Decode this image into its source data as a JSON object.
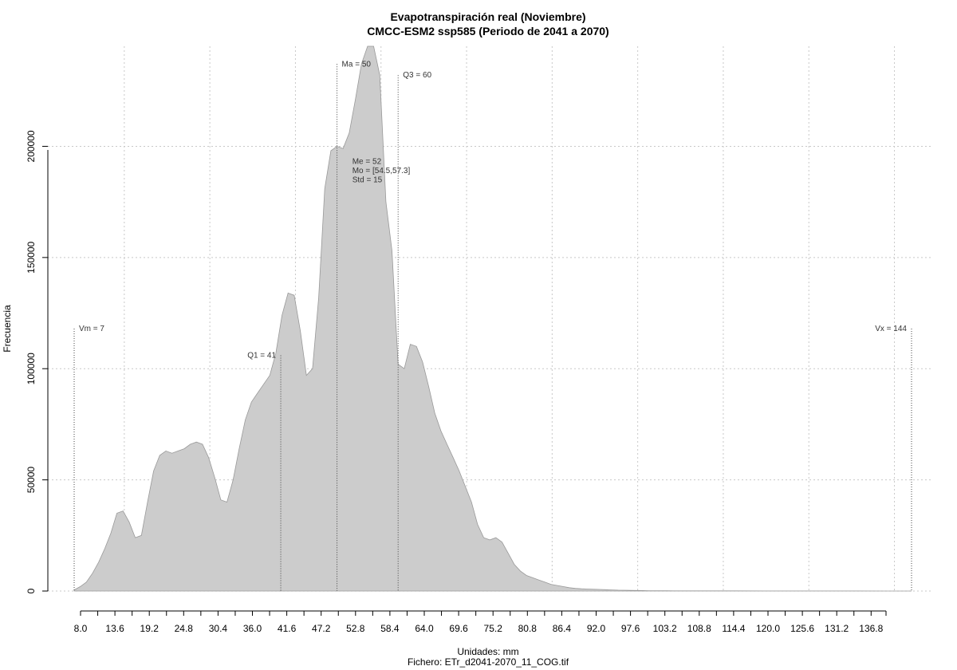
{
  "chart_data": {
    "type": "area",
    "title": "Evapotranspiración real (Noviembre)",
    "subtitle": "CMCC-ESM2 ssp585 (Periodo de 2041 a 2070)",
    "xlabel": "Unidades: mm",
    "file_label": "Fichero: ETr_d2041-2070_11_COG.tif",
    "ylabel": "Frecuencia",
    "xlim": [
      7,
      144
    ],
    "ylim": [
      0,
      245000
    ],
    "grid": true,
    "fill_color": "#cccccc",
    "line_color": "#999999",
    "x_ticks": [
      "8.0",
      "13.6",
      "19.2",
      "24.8",
      "30.4",
      "36.0",
      "41.6",
      "47.2",
      "52.8",
      "58.4",
      "64.0",
      "69.6",
      "75.2",
      "80.8",
      "86.4",
      "92.0",
      "97.6",
      "103.2",
      "108.8",
      "114.4",
      "120.0",
      "125.6",
      "131.2",
      "136.8"
    ],
    "y_ticks": [
      0,
      50000,
      100000,
      150000,
      200000
    ],
    "x": [
      7,
      8,
      9,
      10,
      11,
      12,
      13,
      14,
      15,
      16,
      17,
      18,
      19,
      20,
      21,
      22,
      23,
      24,
      25,
      26,
      27,
      28,
      29,
      30,
      31,
      32,
      33,
      34,
      35,
      36,
      37,
      38,
      39,
      40,
      41,
      42,
      43,
      44,
      45,
      46,
      47,
      48,
      49,
      50,
      51,
      52,
      53,
      54,
      55,
      56,
      57,
      58,
      59,
      60,
      61,
      62,
      63,
      64,
      65,
      66,
      67,
      68,
      69,
      70,
      71,
      72,
      73,
      74,
      75,
      76,
      77,
      78,
      79,
      80,
      81,
      82,
      83,
      84,
      85,
      86,
      87,
      88,
      89,
      90,
      91,
      92,
      93,
      94,
      95,
      96,
      97,
      98,
      99,
      100,
      101,
      102,
      103,
      104,
      105,
      110,
      115,
      120,
      125,
      130,
      135,
      140,
      144
    ],
    "values": [
      500,
      2000,
      4000,
      8000,
      13000,
      19000,
      26000,
      35000,
      36000,
      31000,
      24000,
      25000,
      40000,
      54000,
      61000,
      63000,
      62000,
      63000,
      64000,
      66000,
      67000,
      66000,
      60000,
      51000,
      41000,
      40000,
      50000,
      64000,
      77000,
      85000,
      89000,
      93000,
      97000,
      107000,
      124000,
      134000,
      133000,
      117000,
      97000,
      100000,
      132000,
      181000,
      198000,
      200000,
      199000,
      206000,
      221000,
      237000,
      248000,
      248000,
      232000,
      175000,
      153000,
      102000,
      100000,
      111000,
      110000,
      103000,
      92000,
      80000,
      72000,
      66000,
      60000,
      54000,
      47000,
      40000,
      30000,
      24000,
      23000,
      24000,
      22000,
      17000,
      12000,
      9000,
      7000,
      6000,
      5000,
      4000,
      3000,
      2500,
      2000,
      1500,
      1200,
      1000,
      900,
      800,
      700,
      600,
      500,
      400,
      350,
      300,
      250,
      200,
      150,
      120,
      100,
      90,
      80,
      70,
      60,
      50,
      40,
      30,
      20,
      10,
      0
    ],
    "annotations": [
      {
        "label": "Vm = 7",
        "x": 7,
        "y": 118000
      },
      {
        "label": "Q1 = 41",
        "x": 40.8,
        "y": 106000
      },
      {
        "label": "Ma = 50",
        "x": 50,
        "y": 237000
      },
      {
        "label": "Q3 = 60",
        "x": 60,
        "y": 232000
      },
      {
        "label": "Vx = 144",
        "x": 144,
        "y": 118000
      }
    ],
    "stats": [
      "Me = 52",
      "Mo = [54.5,57.3]",
      "Std = 15"
    ],
    "stats_anchor": {
      "x": 52.5,
      "y": 195000
    }
  }
}
